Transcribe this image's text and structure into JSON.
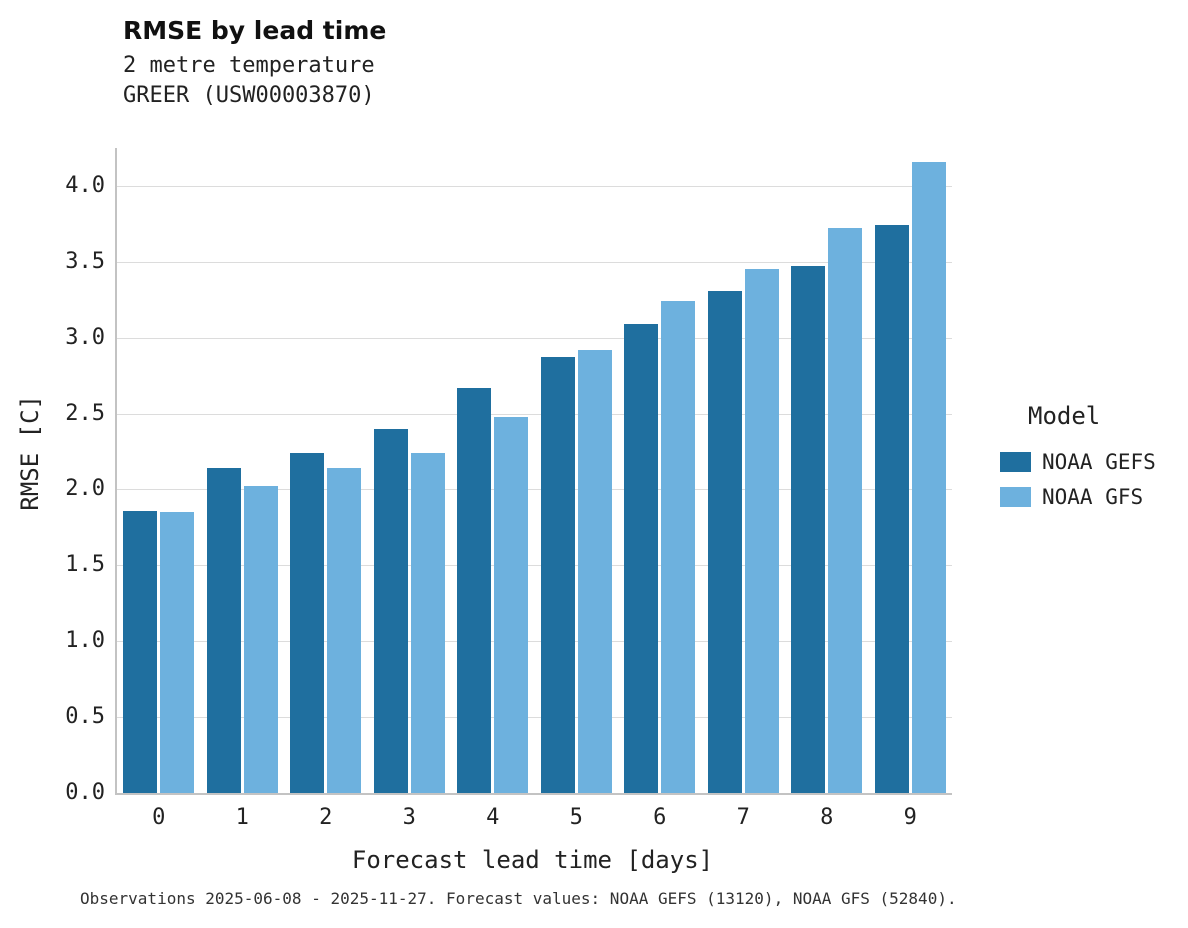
{
  "title": "RMSE by lead time",
  "subtitle_line1": "2 metre temperature",
  "subtitle_line2": "GREER (USW00003870)",
  "ylabel": "RMSE [C]",
  "xlabel": "Forecast lead time [days]",
  "caption": "Observations 2025-06-08 - 2025-11-27. Forecast values: NOAA GEFS (13120), NOAA GFS (52840).",
  "colors": {
    "gefs": "#1f6f9f",
    "gfs": "#6db1de",
    "grid": "#dcdcdc",
    "spine": "#c3c3c3"
  },
  "legend": {
    "title": "Model",
    "entries": [
      {
        "label": "NOAA GEFS",
        "color": "#1f6f9f"
      },
      {
        "label": "NOAA GFS",
        "color": "#6db1de"
      }
    ]
  },
  "chart_data": {
    "type": "bar",
    "categories": [
      0,
      1,
      2,
      3,
      4,
      5,
      6,
      7,
      8,
      9
    ],
    "series": [
      {
        "name": "NOAA GEFS",
        "color": "#1f6f9f",
        "values": [
          1.86,
          2.14,
          2.24,
          2.4,
          2.67,
          2.87,
          3.09,
          3.31,
          3.47,
          3.74
        ]
      },
      {
        "name": "NOAA GFS",
        "color": "#6db1de",
        "values": [
          1.85,
          2.02,
          2.14,
          2.24,
          2.48,
          2.92,
          3.24,
          3.45,
          3.72,
          4.16
        ]
      }
    ],
    "title": "RMSE by lead time",
    "subtitle": "2 metre temperature GREER (USW00003870)",
    "xlabel": "Forecast lead time [days]",
    "ylabel": "RMSE [C]",
    "ylim": [
      0,
      4.25
    ],
    "yticks": [
      0.0,
      0.5,
      1.0,
      1.5,
      2.0,
      2.5,
      3.0,
      3.5,
      4.0
    ],
    "grid": true,
    "legend_title": "Model",
    "legend_position": "right"
  }
}
